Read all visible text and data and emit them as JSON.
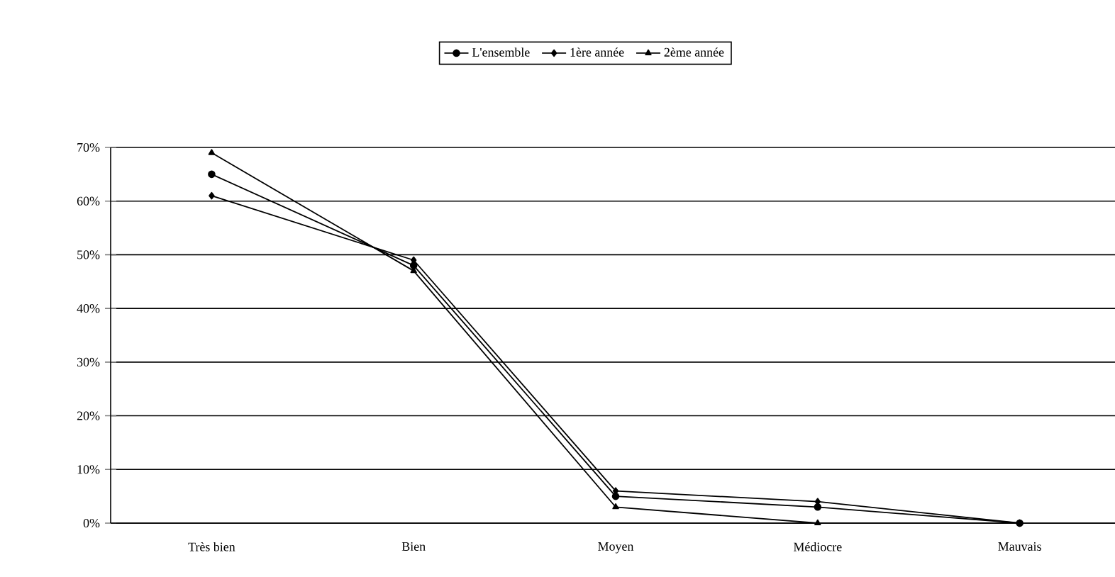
{
  "chart_data": {
    "type": "line",
    "categories": [
      "Très bien",
      "Bien",
      "Moyen",
      "Médiocre",
      "Mauvais"
    ],
    "series": [
      {
        "name": "L'ensemble",
        "color": "#000000",
        "marker": "circle",
        "values": [
          65,
          48,
          5,
          3,
          0
        ]
      },
      {
        "name": "1ère année",
        "color": "#000000",
        "marker": "diamond",
        "values": [
          61,
          49,
          6,
          4,
          0
        ]
      },
      {
        "name": "2ème année",
        "color": "#000000",
        "marker": "triangle",
        "values": [
          69,
          47,
          3,
          0,
          0
        ]
      }
    ],
    "ylim": [
      0,
      70
    ],
    "yticks": [
      {
        "value": 0,
        "label": "0%"
      },
      {
        "value": 10,
        "label": "10%"
      },
      {
        "value": 20,
        "label": "20%"
      },
      {
        "value": 30,
        "label": "30%"
      },
      {
        "value": 40,
        "label": "40%"
      },
      {
        "value": 50,
        "label": "50%"
      },
      {
        "value": 60,
        "label": "60%"
      },
      {
        "value": 70,
        "label": "70%"
      }
    ],
    "grid": "y",
    "legend": "top",
    "line_style": "solid"
  }
}
